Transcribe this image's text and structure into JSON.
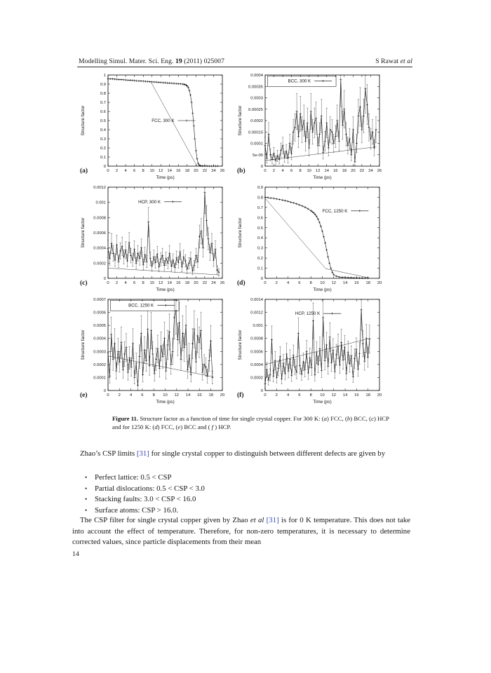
{
  "page": {
    "link_color": "#3a45b4",
    "header": {
      "left": [
        [
          "",
          "Modelling Simul. Mater. Sci. Eng. "
        ],
        [
          "b",
          "19"
        ],
        [
          "",
          " (2011) 025007"
        ]
      ],
      "right": [
        [
          "",
          "S Rawat "
        ],
        [
          "i",
          "et al"
        ]
      ]
    },
    "caption": [
      [
        "b",
        "Figure 11."
      ],
      [
        "",
        "  Structure factor as a function of time for single crystal copper.  For 300 K: ("
      ],
      [
        "i",
        "a"
      ],
      [
        "",
        ") FCC, ("
      ],
      [
        "i",
        "b"
      ],
      [
        "",
        ") BCC, ("
      ],
      [
        "i",
        "c"
      ],
      [
        "",
        ") HCP and for 1250 K: ("
      ],
      [
        "i",
        "d"
      ],
      [
        "",
        ") FCC, ("
      ],
      [
        "i",
        "e"
      ],
      [
        "",
        ") BCC and ( "
      ],
      [
        "i",
        "f"
      ],
      [
        "",
        " ) HCP."
      ]
    ],
    "para1": [
      [
        "",
        "Zhao’s CSP limits "
      ],
      [
        "link",
        "[31]"
      ],
      [
        "",
        " for single crystal copper to distinguish between different defects are given by"
      ]
    ],
    "bullets": [
      "Perfect lattice: 0.5 < CSP",
      "Partial dislocations: 0.5 < CSP < 3.0",
      "Stacking faults: 3.0 < CSP < 16.0",
      "Surface atoms: CSP > 16.0."
    ],
    "para2": [
      [
        "",
        "The CSP filter for single crystal copper given by Zhao "
      ],
      [
        "i",
        "et al"
      ],
      [
        "",
        " "
      ],
      [
        "link",
        "[31]"
      ],
      [
        "",
        " is for 0 K temperature.  This does not take into account the effect of temperature.  Therefore, for non-zero temperatures, it is necessary to determine corrected values, since particle displacements from their mean"
      ]
    ],
    "page_number": "14"
  },
  "chart_data": [
    {
      "id": "a",
      "panel_label": "(a)",
      "type": "line",
      "xlabel": "Time (ps)",
      "ylabel": "Structure factor",
      "xlim": [
        0,
        26
      ],
      "xstep": 2,
      "ylim": [
        0,
        1
      ],
      "yticks": [
        [
          0,
          "0"
        ],
        [
          0.1,
          "0.1"
        ],
        [
          0.2,
          "0.2"
        ],
        [
          0.3,
          "0.3"
        ],
        [
          0.4,
          "0.4"
        ],
        [
          0.5,
          "0.5"
        ],
        [
          0.6,
          "0.6"
        ],
        [
          0.7,
          "0.7"
        ],
        [
          0.8,
          "0.8"
        ],
        [
          0.9,
          "0.9"
        ],
        [
          1,
          "1"
        ]
      ],
      "legend": {
        "label": "FCC, 300 K",
        "tx": 0.58,
        "ty": 0.5,
        "box": null
      },
      "fit_lines": [
        [
          [
            9.8,
            0.92
          ],
          [
            20.2,
            0.004
          ]
        ]
      ],
      "series": {
        "scale": 1,
        "errBase": 0,
        "errFactor": 0,
        "x": [
          0,
          0.5,
          1,
          1.5,
          2,
          2.5,
          3,
          3.5,
          4,
          4.5,
          5,
          5.5,
          6,
          6.5,
          7,
          7.5,
          8,
          8.5,
          9,
          9.5,
          10,
          10.5,
          11,
          11.5,
          12,
          12.5,
          13,
          13.5,
          14,
          14.5,
          15,
          15.5,
          16,
          16.5,
          17,
          17.25,
          17.5,
          17.75,
          18,
          18.25,
          18.5,
          18.75,
          19,
          19.25,
          19.5,
          19.75,
          20,
          20.25,
          20.5,
          20.75,
          21,
          21.5,
          22,
          22.5,
          23,
          23.5,
          24,
          24.5,
          25
        ],
        "y": [
          0.96,
          0.958,
          0.957,
          0.955,
          0.953,
          0.951,
          0.95,
          0.948,
          0.946,
          0.944,
          0.943,
          0.941,
          0.939,
          0.937,
          0.936,
          0.934,
          0.932,
          0.93,
          0.929,
          0.927,
          0.925,
          0.923,
          0.922,
          0.92,
          0.918,
          0.916,
          0.915,
          0.913,
          0.911,
          0.909,
          0.908,
          0.906,
          0.904,
          0.902,
          0.9,
          0.898,
          0.895,
          0.89,
          0.88,
          0.862,
          0.83,
          0.78,
          0.7,
          0.58,
          0.44,
          0.3,
          0.17,
          0.08,
          0.03,
          0.01,
          0.005,
          0.003,
          0.002,
          0.002,
          0.001,
          0.001,
          0.001,
          0.001,
          0.001
        ]
      }
    },
    {
      "id": "b",
      "panel_label": "(b)",
      "type": "line-errorbar",
      "xlabel": "Time (ps)",
      "ylabel": "Structure factor",
      "xlim": [
        0,
        26
      ],
      "xstep": 2,
      "ylim": [
        0,
        0.0004
      ],
      "yticks": [
        [
          0,
          "0"
        ],
        [
          5e-05,
          "5e-05"
        ],
        [
          0.0001,
          "0.0001"
        ],
        [
          0.00015,
          "0.00015"
        ],
        [
          0.0002,
          "0.0002"
        ],
        [
          0.00025,
          "0.00025"
        ],
        [
          0.0003,
          "0.0003"
        ],
        [
          0.00035,
          "0.00035"
        ],
        [
          0.0004,
          "0.0004"
        ]
      ],
      "legend": {
        "label": "BCC, 300 K",
        "tx": 0.4,
        "ty": 0.065,
        "box": [
          0.02,
          0.01,
          0.6,
          0.115
        ]
      },
      "fit_lines": [
        [
          [
            0,
            2.5e-05
          ],
          [
            25.3,
            8.5e-05
          ]
        ]
      ],
      "series": {
        "scale": 0.0001,
        "x0": 0,
        "dx": 0.4,
        "errBase": 1.2e-05,
        "errFactor": 0.28,
        "y": [
          0.9,
          0.35,
          1.4,
          0.5,
          0.3,
          0.55,
          0.25,
          0.45,
          0.3,
          0.7,
          0.9,
          0.4,
          0.65,
          0.35,
          1.0,
          0.55,
          1.5,
          1.7,
          2.4,
          1.3,
          2.3,
          1.6,
          2.0,
          1.1,
          1.9,
          0.8,
          2.4,
          1.5,
          1.9,
          2.1,
          0.9,
          1.4,
          2.2,
          0.6,
          1.1,
          1.9,
          0.8,
          1.6,
          1.5,
          1.0,
          1.3,
          2.0,
          1.1,
          3.8,
          1.8,
          2.5,
          1.4,
          0.9,
          1.2,
          0.5,
          1.6,
          0.2,
          1.0,
          2.2,
          2.6,
          1.6,
          2.2,
          3.4,
          2.7,
          1.7,
          1.2,
          1.5,
          0.8,
          1.6
        ]
      }
    },
    {
      "id": "c",
      "panel_label": "(c)",
      "type": "line-errorbar",
      "xlabel": "Time (ps)",
      "ylabel": "Structure factor",
      "xlim": [
        0,
        26
      ],
      "xstep": 2,
      "ylim": [
        0,
        0.0012
      ],
      "yticks": [
        [
          0,
          "0"
        ],
        [
          0.0002,
          "0.0002"
        ],
        [
          0.0004,
          "0.0004"
        ],
        [
          0.0006,
          "0.0006"
        ],
        [
          0.0008,
          "0.0008"
        ],
        [
          0.001,
          "0.001"
        ],
        [
          0.0012,
          "0.0012"
        ]
      ],
      "legend": {
        "label": "HCP, 300 K",
        "tx": 0.46,
        "ty": 0.16,
        "box": null
      },
      "fit_lines": [
        [
          [
            0,
            0.000135
          ],
          [
            25.3,
            4.5e-05
          ]
        ]
      ],
      "series": {
        "scale": 0.0001,
        "x0": 0,
        "dx": 0.4,
        "errBase": 3e-05,
        "errFactor": 0.22,
        "y": [
          3.9,
          2.6,
          4.6,
          3.3,
          2.4,
          4.4,
          2.2,
          3.6,
          4.2,
          2.8,
          3.7,
          2.3,
          4.7,
          3.0,
          2.4,
          3.8,
          2.0,
          3.3,
          2.6,
          4.0,
          1.8,
          3.1,
          2.2,
          7.4,
          2.6,
          1.6,
          2.8,
          2.1,
          3.2,
          1.5,
          2.5,
          3.0,
          1.7,
          2.6,
          2.0,
          3.3,
          1.6,
          2.4,
          1.4,
          2.7,
          2.1,
          3.5,
          1.5,
          2.8,
          2.3,
          1.2,
          2.0,
          2.6,
          1.0,
          1.7,
          3.0,
          2.2,
          5.5,
          6.2,
          4.0,
          11.3,
          7.6,
          5.2,
          3.4,
          4.6,
          2.4,
          3.8,
          1.1,
          0.8
        ]
      }
    },
    {
      "id": "d",
      "panel_label": "(d)",
      "type": "line",
      "xlabel": "Time (ps)",
      "ylabel": "Structure factor",
      "xlim": [
        0,
        20
      ],
      "xstep": 2,
      "ylim": [
        0,
        0.9
      ],
      "yticks": [
        [
          0,
          "0"
        ],
        [
          0.1,
          "0.1"
        ],
        [
          0.2,
          "0.2"
        ],
        [
          0.3,
          "0.3"
        ],
        [
          0.4,
          "0.4"
        ],
        [
          0.5,
          "0.5"
        ],
        [
          0.6,
          "0.6"
        ],
        [
          0.7,
          "0.7"
        ],
        [
          0.8,
          "0.8"
        ],
        [
          0.9,
          "0.9"
        ]
      ],
      "legend": {
        "label": "FCC, 1250 K",
        "tx": 0.72,
        "ty": 0.26,
        "box": null
      },
      "fit_lines": [
        [
          [
            0,
            0.79
          ],
          [
            10.6,
            0.095
          ],
          [
            18.2,
            0.004
          ]
        ]
      ],
      "series": {
        "scale": 1,
        "errBase": 0,
        "errFactor": 0,
        "x": [
          0,
          0.5,
          1,
          1.5,
          2,
          2.5,
          3,
          3.5,
          4,
          4.5,
          5,
          5.5,
          6,
          6.5,
          7,
          7.5,
          8,
          8.25,
          8.5,
          8.75,
          9,
          9.25,
          9.5,
          9.75,
          10,
          10.25,
          10.5,
          10.75,
          11,
          11.25,
          11.5,
          11.75,
          12,
          12.5,
          13,
          13.5,
          14,
          14.5,
          15,
          15.5,
          16,
          16.5,
          17,
          17.5,
          18
        ],
        "y": [
          0.8,
          0.797,
          0.793,
          0.789,
          0.784,
          0.779,
          0.773,
          0.767,
          0.76,
          0.752,
          0.744,
          0.735,
          0.725,
          0.714,
          0.701,
          0.686,
          0.668,
          0.657,
          0.645,
          0.63,
          0.61,
          0.585,
          0.553,
          0.513,
          0.465,
          0.41,
          0.35,
          0.28,
          0.21,
          0.15,
          0.1,
          0.06,
          0.035,
          0.02,
          0.013,
          0.01,
          0.008,
          0.007,
          0.006,
          0.005,
          0.004,
          0.003,
          0.003,
          0.002,
          0.002
        ]
      }
    },
    {
      "id": "e",
      "panel_label": "(e)",
      "type": "line-errorbar",
      "xlabel": "Time (ps)",
      "ylabel": "Structure factor",
      "xlim": [
        0,
        20
      ],
      "xstep": 2,
      "ylim": [
        0,
        0.0007
      ],
      "yticks": [
        [
          0,
          "0"
        ],
        [
          0.0001,
          "0.0001"
        ],
        [
          0.0002,
          "0.0002"
        ],
        [
          0.0003,
          "0.0003"
        ],
        [
          0.0004,
          "0.0004"
        ],
        [
          0.0005,
          "0.0005"
        ],
        [
          0.0006,
          "0.0006"
        ],
        [
          0.0007,
          "0.0007"
        ]
      ],
      "legend": {
        "label": "BCC, 1250 K",
        "tx": 0.4,
        "ty": 0.065,
        "box": [
          0.02,
          0.01,
          0.6,
          0.115
        ]
      },
      "fit_lines": [
        [
          [
            0,
            0.000265
          ],
          [
            18.4,
            0.000105
          ]
        ]
      ],
      "series": {
        "scale": 0.0001,
        "x0": 0,
        "dx": 0.29,
        "errBase": 2.5e-05,
        "errFactor": 0.25,
        "y": [
          2.9,
          1.1,
          4.3,
          2.4,
          3.6,
          1.5,
          3.0,
          2.2,
          3.7,
          1.6,
          2.8,
          3.3,
          1.4,
          2.5,
          1.8,
          3.6,
          1.0,
          2.1,
          0.4,
          2.6,
          4.4,
          1.2,
          3.1,
          2.3,
          4.7,
          1.9,
          4.6,
          2.8,
          1.3,
          2.4,
          3.2,
          1.7,
          3.4,
          2.6,
          4.0,
          1.5,
          3.5,
          4.5,
          2.0,
          3.0,
          5.6,
          6.1,
          3.9,
          5.2,
          2.4,
          4.4,
          3.3,
          5.0,
          1.6,
          2.7,
          1.2,
          3.6,
          4.7,
          2.2,
          4.2,
          3.7,
          4.6,
          1.4,
          2.0,
          1.8,
          1.1,
          2.3,
          3.8,
          1.0
        ]
      }
    },
    {
      "id": "f",
      "panel_label": "(f)",
      "type": "line-errorbar",
      "xlabel": "Time (ps)",
      "ylabel": "Structure factor",
      "xlim": [
        0,
        20
      ],
      "xstep": 2,
      "ylim": [
        0,
        0.0014
      ],
      "yticks": [
        [
          0,
          "0"
        ],
        [
          0.0002,
          "0.0002"
        ],
        [
          0.0004,
          "0.0004"
        ],
        [
          0.0006,
          "0.0006"
        ],
        [
          0.0008,
          "0.0008"
        ],
        [
          0.001,
          "0.001"
        ],
        [
          0.0012,
          "0.0012"
        ],
        [
          0.0014,
          "0.0014"
        ]
      ],
      "legend": {
        "label": "HCP, 1250 K",
        "tx": 0.48,
        "ty": 0.155,
        "box": null
      },
      "fit_lines": [
        [
          [
            0,
            0.0004
          ],
          [
            18.3,
            0.0008
          ]
        ]
      ],
      "series": {
        "scale": 0.0001,
        "x0": 0,
        "dx": 0.29,
        "errBase": 4e-05,
        "errFactor": 0.22,
        "y": [
          1.0,
          3.2,
          1.6,
          2.4,
          7.8,
          2.2,
          4.6,
          2.0,
          3.4,
          5.2,
          1.8,
          4.2,
          2.6,
          5.6,
          3.0,
          4.8,
          2.3,
          5.4,
          3.6,
          2.8,
          8.8,
          3.8,
          2.5,
          4.4,
          3.2,
          6.0,
          2.7,
          5.0,
          3.5,
          10.7,
          2.4,
          5.8,
          4.0,
          6.4,
          3.1,
          11.2,
          4.6,
          7.0,
          3.7,
          8.2,
          4.3,
          6.2,
          2.9,
          5.5,
          6.8,
          3.9,
          7.4,
          4.7,
          6.6,
          2.6,
          5.9,
          4.1,
          5.3,
          2.1,
          4.9,
          6.3,
          3.3,
          5.7,
          12.4,
          7.2,
          4.5,
          8.0,
          5.1,
          7.9
        ]
      }
    }
  ]
}
